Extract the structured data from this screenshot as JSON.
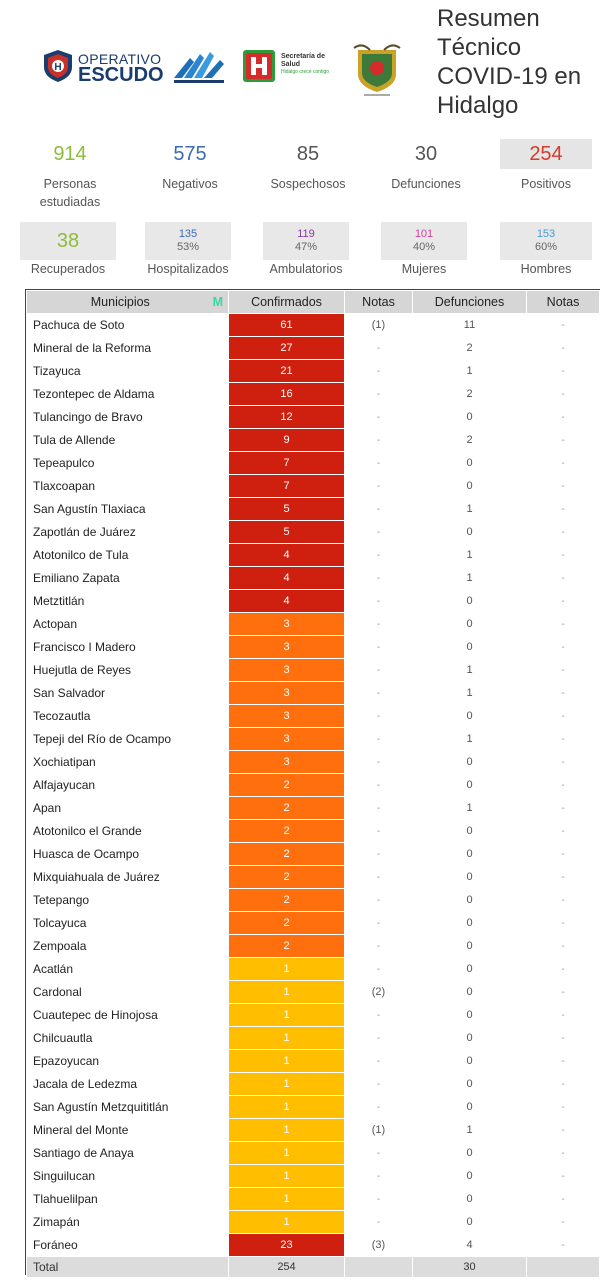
{
  "header": {
    "escudo_line1": "OPERATIVO",
    "escudo_line2": "ESCUDO",
    "salud_line1": "Secretaría de",
    "salud_line2": "Salud",
    "salud_line3": "Hidalgo crece contigo",
    "title_lines": [
      "Resumen",
      "Técnico",
      "COVID-19 en",
      "Hidalgo"
    ]
  },
  "colors": {
    "green": "#8cbc3c",
    "blue": "#3d6bb3",
    "purple": "#8b3aa8",
    "pink": "#d6409a",
    "lightblue": "#4a9ad6",
    "red": "#d73a2a",
    "red_fill": "#cf1f0f",
    "orange_fill": "#ff6f0e",
    "yellow_fill": "#ffbe00"
  },
  "stats_top": [
    {
      "value": "914",
      "label": "Personas estudiadas",
      "color": "#8cbc3c"
    },
    {
      "value": "575",
      "label": "Negativos",
      "color": "#3d6bb3"
    },
    {
      "value": "85",
      "label": "Sospechosos",
      "color": "#555555"
    },
    {
      "value": "30",
      "label": "Defunciones",
      "color": "#555555"
    },
    {
      "value": "254",
      "label": "Positivos",
      "color": "#d73a2a"
    }
  ],
  "stats_bottom": [
    {
      "value": "38",
      "pct": "",
      "label": "Recuperados",
      "color": "#8cbc3c"
    },
    {
      "value": "135",
      "pct": "53%",
      "label": "Hospitalizados",
      "color": "#3d6bb3"
    },
    {
      "value": "119",
      "pct": "47%",
      "label": "Ambulatorios",
      "color": "#8b3aa8"
    },
    {
      "value": "101",
      "pct": "40%",
      "label": "Mujeres",
      "color": "#d6409a"
    },
    {
      "value": "153",
      "pct": "60%",
      "label": "Hombres",
      "color": "#4a9ad6"
    }
  ],
  "table": {
    "headers": {
      "municipios": "Municipios",
      "marker": "M",
      "confirmados": "Confirmados",
      "notas": "Notas",
      "defunciones": "Defunciones",
      "notas2": "Notas"
    },
    "rows": [
      {
        "municipio": "Pachuca de Soto",
        "confirmados": "61",
        "level": "red",
        "notas": "(1)",
        "defunciones": "11",
        "notas2": "-"
      },
      {
        "municipio": "Mineral de la Reforma",
        "confirmados": "27",
        "level": "red",
        "notas": "-",
        "defunciones": "2",
        "notas2": "-"
      },
      {
        "municipio": "Tizayuca",
        "confirmados": "21",
        "level": "red",
        "notas": "-",
        "defunciones": "1",
        "notas2": "-"
      },
      {
        "municipio": "Tezontepec de Aldama",
        "confirmados": "16",
        "level": "red",
        "notas": "-",
        "defunciones": "2",
        "notas2": "-"
      },
      {
        "municipio": "Tulancingo de Bravo",
        "confirmados": "12",
        "level": "red",
        "notas": "-",
        "defunciones": "0",
        "notas2": "-"
      },
      {
        "municipio": "Tula de Allende",
        "confirmados": "9",
        "level": "red",
        "notas": "-",
        "defunciones": "2",
        "notas2": "-"
      },
      {
        "municipio": "Tepeapulco",
        "confirmados": "7",
        "level": "red",
        "notas": "-",
        "defunciones": "0",
        "notas2": "-"
      },
      {
        "municipio": "Tlaxcoapan",
        "confirmados": "7",
        "level": "red",
        "notas": "-",
        "defunciones": "0",
        "notas2": "-"
      },
      {
        "municipio": "San Agustín Tlaxiaca",
        "confirmados": "5",
        "level": "red",
        "notas": "-",
        "defunciones": "1",
        "notas2": "-"
      },
      {
        "municipio": "Zapotlán de Juárez",
        "confirmados": "5",
        "level": "red",
        "notas": "-",
        "defunciones": "0",
        "notas2": "-"
      },
      {
        "municipio": "Atotonilco de Tula",
        "confirmados": "4",
        "level": "red",
        "notas": "-",
        "defunciones": "1",
        "notas2": "-"
      },
      {
        "municipio": "Emiliano Zapata",
        "confirmados": "4",
        "level": "red",
        "notas": "-",
        "defunciones": "1",
        "notas2": "-"
      },
      {
        "municipio": "Metztitlán",
        "confirmados": "4",
        "level": "red",
        "notas": "-",
        "defunciones": "0",
        "notas2": "-"
      },
      {
        "municipio": "Actopan",
        "confirmados": "3",
        "level": "orange",
        "notas": "-",
        "defunciones": "0",
        "notas2": "-"
      },
      {
        "municipio": "Francisco I Madero",
        "confirmados": "3",
        "level": "orange",
        "notas": "-",
        "defunciones": "0",
        "notas2": "-"
      },
      {
        "municipio": "Huejutla de Reyes",
        "confirmados": "3",
        "level": "orange",
        "notas": "-",
        "defunciones": "1",
        "notas2": "-"
      },
      {
        "municipio": "San Salvador",
        "confirmados": "3",
        "level": "orange",
        "notas": "-",
        "defunciones": "1",
        "notas2": "-"
      },
      {
        "municipio": "Tecozautla",
        "confirmados": "3",
        "level": "orange",
        "notas": "-",
        "defunciones": "0",
        "notas2": "-"
      },
      {
        "municipio": "Tepeji del Río de Ocampo",
        "confirmados": "3",
        "level": "orange",
        "notas": "-",
        "defunciones": "1",
        "notas2": "-"
      },
      {
        "municipio": "Xochiatipan",
        "confirmados": "3",
        "level": "orange",
        "notas": "-",
        "defunciones": "0",
        "notas2": "-"
      },
      {
        "municipio": "Alfajayucan",
        "confirmados": "2",
        "level": "orange",
        "notas": "-",
        "defunciones": "0",
        "notas2": "-"
      },
      {
        "municipio": "Apan",
        "confirmados": "2",
        "level": "orange",
        "notas": "-",
        "defunciones": "1",
        "notas2": "-"
      },
      {
        "municipio": "Atotonilco el Grande",
        "confirmados": "2",
        "level": "orange",
        "notas": "-",
        "defunciones": "0",
        "notas2": "-"
      },
      {
        "municipio": "Huasca de Ocampo",
        "confirmados": "2",
        "level": "orange",
        "notas": "-",
        "defunciones": "0",
        "notas2": "-"
      },
      {
        "municipio": "Mixquiahuala de Juárez",
        "confirmados": "2",
        "level": "orange",
        "notas": "-",
        "defunciones": "0",
        "notas2": "-"
      },
      {
        "municipio": "Tetepango",
        "confirmados": "2",
        "level": "orange",
        "notas": "-",
        "defunciones": "0",
        "notas2": "-"
      },
      {
        "municipio": "Tolcayuca",
        "confirmados": "2",
        "level": "orange",
        "notas": "-",
        "defunciones": "0",
        "notas2": "-"
      },
      {
        "municipio": "Zempoala",
        "confirmados": "2",
        "level": "orange",
        "notas": "-",
        "defunciones": "0",
        "notas2": "-"
      },
      {
        "municipio": "Acatlán",
        "confirmados": "1",
        "level": "yellow",
        "notas": "-",
        "defunciones": "0",
        "notas2": "-"
      },
      {
        "municipio": "Cardonal",
        "confirmados": "1",
        "level": "yellow",
        "notas": "(2)",
        "defunciones": "0",
        "notas2": "-"
      },
      {
        "municipio": "Cuautepec de Hinojosa",
        "confirmados": "1",
        "level": "yellow",
        "notas": "-",
        "defunciones": "0",
        "notas2": "-"
      },
      {
        "municipio": "Chilcuautla",
        "confirmados": "1",
        "level": "yellow",
        "notas": "-",
        "defunciones": "0",
        "notas2": "-"
      },
      {
        "municipio": "Epazoyucan",
        "confirmados": "1",
        "level": "yellow",
        "notas": "-",
        "defunciones": "0",
        "notas2": "-"
      },
      {
        "municipio": "Jacala de Ledezma",
        "confirmados": "1",
        "level": "yellow",
        "notas": "-",
        "defunciones": "0",
        "notas2": "-"
      },
      {
        "municipio": "San Agustín Metzquititlán",
        "confirmados": "1",
        "level": "yellow",
        "notas": "-",
        "defunciones": "0",
        "notas2": "-"
      },
      {
        "municipio": "Mineral del Monte",
        "confirmados": "1",
        "level": "yellow",
        "notas": "(1)",
        "defunciones": "1",
        "notas2": "-"
      },
      {
        "municipio": "Santiago de Anaya",
        "confirmados": "1",
        "level": "yellow",
        "notas": "-",
        "defunciones": "0",
        "notas2": "-"
      },
      {
        "municipio": "Singuilucan",
        "confirmados": "1",
        "level": "yellow",
        "notas": "-",
        "defunciones": "0",
        "notas2": "-"
      },
      {
        "municipio": "Tlahuelilpan",
        "confirmados": "1",
        "level": "yellow",
        "notas": "-",
        "defunciones": "0",
        "notas2": "-"
      },
      {
        "municipio": "Zimapán",
        "confirmados": "1",
        "level": "yellow",
        "notas": "-",
        "defunciones": "0",
        "notas2": "-"
      },
      {
        "municipio": "Foráneo",
        "confirmados": "23",
        "level": "red",
        "notas": "(3)",
        "defunciones": "4",
        "notas2": "-"
      }
    ],
    "total": {
      "label": "Total",
      "confirmados": "254",
      "defunciones": "30"
    }
  }
}
